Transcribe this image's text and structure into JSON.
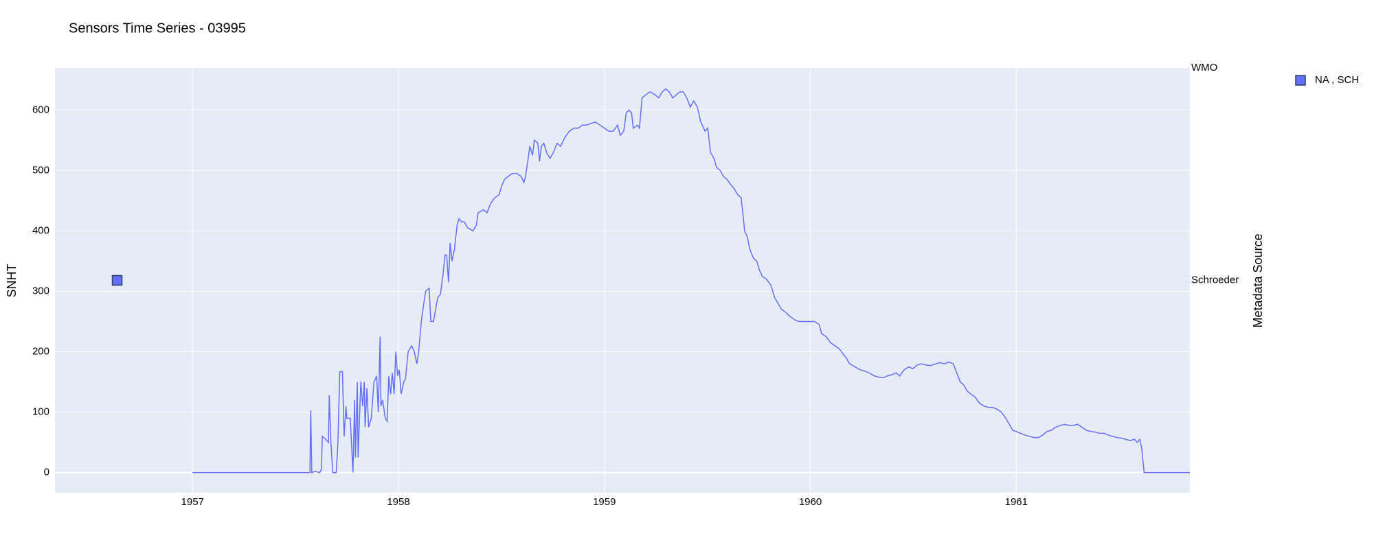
{
  "chart_data": {
    "type": "line",
    "title": "Sensors Time Series - 03995",
    "y_label": "SNHT",
    "y2_label": "Metadata Source",
    "xlim": [
      1956.332,
      1961.843
    ],
    "xticks": [
      1957,
      1958,
      1959,
      1960,
      1961
    ],
    "ylim": [
      -33.3,
      669.6
    ],
    "yticks": [
      0,
      100,
      200,
      300,
      400,
      500,
      600
    ],
    "y2lim": [
      -1,
      1
    ],
    "y2categories": [
      "Schroeder",
      "WMO"
    ],
    "grid": true,
    "legend": "top-right",
    "series": [
      {
        "color": "#636efa",
        "x": [
          1957.0,
          1957.553,
          1957.57,
          1957.574,
          1957.579,
          1957.596,
          1957.617,
          1957.626,
          1957.63,
          1957.647,
          1957.66,
          1957.664,
          1957.672,
          1957.681,
          1957.698,
          1957.706,
          1957.715,
          1957.728,
          1957.736,
          1957.745,
          1957.749,
          1957.766,
          1957.779,
          1957.787,
          1957.791,
          1957.8,
          1957.804,
          1957.817,
          1957.826,
          1957.834,
          1957.838,
          1957.847,
          1957.855,
          1957.868,
          1957.881,
          1957.894,
          1957.902,
          1957.911,
          1957.915,
          1957.923,
          1957.936,
          1957.945,
          1957.953,
          1957.962,
          1957.97,
          1957.979,
          1957.987,
          1957.996,
          1958.004,
          1958.013,
          1958.026,
          1958.034,
          1958.047,
          1958.064,
          1958.077,
          1958.089,
          1958.098,
          1958.111,
          1958.123,
          1958.132,
          1958.149,
          1958.157,
          1958.17,
          1958.191,
          1958.204,
          1958.217,
          1958.226,
          1958.234,
          1958.243,
          1958.251,
          1958.26,
          1958.272,
          1958.285,
          1958.294,
          1958.306,
          1958.319,
          1958.336,
          1958.362,
          1958.379,
          1958.387,
          1958.413,
          1958.43,
          1958.447,
          1958.468,
          1958.489,
          1958.502,
          1958.515,
          1958.532,
          1958.553,
          1958.574,
          1958.596,
          1958.609,
          1958.617,
          1958.63,
          1958.638,
          1958.651,
          1958.66,
          1958.677,
          1958.685,
          1958.694,
          1958.706,
          1958.719,
          1958.736,
          1958.753,
          1958.77,
          1958.787,
          1958.809,
          1958.83,
          1958.851,
          1958.872,
          1958.894,
          1958.915,
          1958.936,
          1958.957,
          1958.979,
          1959.0,
          1959.021,
          1959.043,
          1959.064,
          1959.077,
          1959.094,
          1959.106,
          1959.119,
          1959.132,
          1959.14,
          1959.162,
          1959.17,
          1959.183,
          1959.2,
          1959.221,
          1959.247,
          1959.264,
          1959.281,
          1959.298,
          1959.315,
          1959.332,
          1959.349,
          1959.366,
          1959.383,
          1959.4,
          1959.417,
          1959.434,
          1959.451,
          1959.468,
          1959.489,
          1959.502,
          1959.515,
          1959.532,
          1959.545,
          1959.562,
          1959.579,
          1959.596,
          1959.617,
          1959.63,
          1959.647,
          1959.664,
          1959.672,
          1959.681,
          1959.694,
          1959.706,
          1959.723,
          1959.74,
          1959.753,
          1959.766,
          1959.787,
          1959.809,
          1959.826,
          1959.843,
          1959.86,
          1959.881,
          1959.902,
          1959.928,
          1959.945,
          1959.97,
          1960.0,
          1960.021,
          1960.043,
          1960.055,
          1960.077,
          1960.098,
          1960.119,
          1960.14,
          1960.162,
          1960.174,
          1960.191,
          1960.217,
          1960.243,
          1960.264,
          1960.285,
          1960.311,
          1960.332,
          1960.353,
          1960.374,
          1960.396,
          1960.417,
          1960.434,
          1960.455,
          1960.477,
          1960.498,
          1960.519,
          1960.54,
          1960.562,
          1960.583,
          1960.609,
          1960.63,
          1960.651,
          1960.672,
          1960.694,
          1960.711,
          1960.728,
          1960.745,
          1960.762,
          1960.779,
          1960.8,
          1960.821,
          1960.843,
          1960.864,
          1960.885,
          1960.906,
          1960.928,
          1960.949,
          1960.966,
          1960.983,
          1961.0,
          1961.021,
          1961.043,
          1961.064,
          1961.085,
          1961.106,
          1961.128,
          1961.149,
          1961.17,
          1961.191,
          1961.213,
          1961.234,
          1961.255,
          1961.277,
          1961.298,
          1961.319,
          1961.34,
          1961.362,
          1961.383,
          1961.404,
          1961.426,
          1961.447,
          1961.468,
          1961.489,
          1961.511,
          1961.532,
          1961.553,
          1961.574,
          1961.587,
          1961.6,
          1961.609,
          1961.621,
          1961.843
        ],
        "values": [
          0,
          0,
          0,
          103,
          0,
          2,
          0,
          5,
          60,
          55,
          50,
          128,
          50,
          0,
          0,
          50,
          167,
          167,
          60,
          110,
          90,
          90,
          0,
          120,
          25,
          150,
          25,
          150,
          110,
          150,
          75,
          140,
          75,
          90,
          150,
          160,
          100,
          225,
          110,
          120,
          90,
          85,
          160,
          130,
          165,
          130,
          200,
          160,
          170,
          130,
          150,
          155,
          200,
          210,
          200,
          180,
          200,
          250,
          280,
          300,
          305,
          250,
          250,
          290,
          295,
          330,
          360,
          360,
          315,
          380,
          350,
          370,
          410,
          420,
          415,
          415,
          405,
          400,
          410,
          430,
          435,
          430,
          445,
          455,
          460,
          475,
          485,
          490,
          495,
          495,
          490,
          480,
          490,
          520,
          540,
          525,
          550,
          545,
          515,
          540,
          545,
          530,
          520,
          530,
          545,
          540,
          555,
          565,
          570,
          570,
          575,
          575,
          578,
          580,
          575,
          570,
          565,
          565,
          575,
          558,
          565,
          595,
          600,
          595,
          570,
          575,
          570,
          620,
          625,
          630,
          625,
          620,
          630,
          635,
          630,
          620,
          625,
          630,
          630,
          620,
          605,
          615,
          605,
          580,
          565,
          570,
          530,
          520,
          505,
          500,
          490,
          485,
          475,
          470,
          460,
          455,
          430,
          400,
          390,
          370,
          355,
          350,
          335,
          325,
          320,
          310,
          290,
          280,
          270,
          265,
          258,
          252,
          250,
          250,
          250,
          250,
          245,
          230,
          225,
          215,
          210,
          205,
          195,
          190,
          180,
          175,
          170,
          168,
          165,
          160,
          158,
          157,
          160,
          162,
          165,
          160,
          170,
          175,
          172,
          178,
          180,
          178,
          177,
          180,
          182,
          180,
          183,
          180,
          165,
          150,
          145,
          135,
          130,
          125,
          115,
          110,
          108,
          108,
          105,
          100,
          90,
          80,
          70,
          68,
          65,
          62,
          60,
          58,
          58,
          62,
          68,
          70,
          75,
          78,
          80,
          78,
          78,
          80,
          75,
          70,
          68,
          67,
          65,
          65,
          62,
          60,
          58,
          57,
          55,
          53,
          55,
          50,
          55,
          40,
          0,
          0
        ]
      },
      {
        "name": "NA , SCH",
        "color": "#636efa",
        "axis": "y2",
        "x": [
          1956.634
        ],
        "values": [
          "Schroeder"
        ]
      }
    ]
  }
}
